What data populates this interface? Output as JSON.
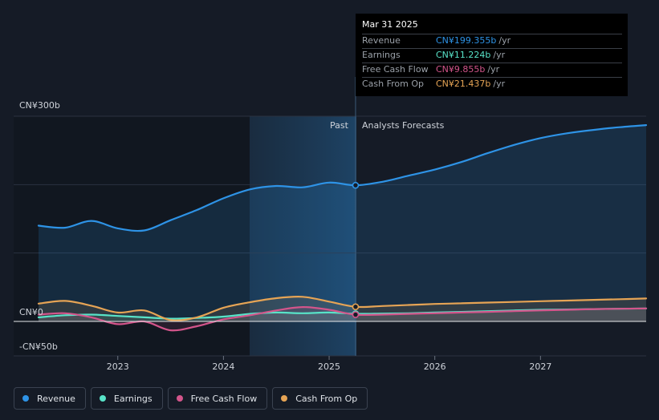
{
  "chart_data": {
    "type": "line",
    "y_axis_labels": [
      "CN¥300b",
      "CN¥0",
      "-CN¥50b"
    ],
    "ylim": [
      -50,
      300
    ],
    "xlim": [
      2022.25,
      2028.0
    ],
    "x_ticks": [
      {
        "label": "2023",
        "value": 2023.0
      },
      {
        "label": "2024",
        "value": 2024.0
      },
      {
        "label": "2025",
        "value": 2025.0
      },
      {
        "label": "2026",
        "value": 2026.0
      },
      {
        "label": "2027",
        "value": 2027.0
      }
    ],
    "divider_x": 2025.25,
    "shade_start_x": 2024.25,
    "past_label": "Past",
    "forecast_label": "Analysts Forecasts",
    "series": [
      {
        "name": "Revenue",
        "color": "#2e93e6",
        "x": [
          2022.25,
          2022.5,
          2022.75,
          2023.0,
          2023.25,
          2023.5,
          2023.75,
          2024.0,
          2024.25,
          2024.5,
          2024.75,
          2025.0,
          2025.25,
          2025.5,
          2025.75,
          2026.0,
          2026.25,
          2026.5,
          2026.75,
          2027.0,
          2027.25,
          2027.5,
          2027.75,
          2028.0
        ],
        "values": [
          140,
          137,
          147,
          136,
          133,
          148,
          163,
          180,
          193,
          198,
          196,
          203,
          199,
          204,
          213,
          222,
          233,
          246,
          258,
          268,
          275,
          280,
          284,
          287
        ]
      },
      {
        "name": "Earnings",
        "color": "#58e3c8",
        "x": [
          2022.25,
          2022.5,
          2022.75,
          2023.0,
          2023.25,
          2023.5,
          2023.75,
          2024.0,
          2024.25,
          2024.5,
          2024.75,
          2025.0,
          2025.25,
          2025.5,
          2025.75,
          2026.0,
          2026.25,
          2026.5,
          2026.75,
          2027.0,
          2027.25,
          2027.5,
          2027.75,
          2028.0
        ],
        "values": [
          6,
          9,
          10,
          8,
          6,
          4,
          5,
          7,
          11,
          13,
          12,
          13,
          11.2,
          11.5,
          12,
          13,
          14,
          15,
          16,
          17,
          17.5,
          18,
          18.5,
          19
        ]
      },
      {
        "name": "Free Cash Flow",
        "color": "#d3558b",
        "x": [
          2022.25,
          2022.5,
          2022.75,
          2023.0,
          2023.25,
          2023.5,
          2023.75,
          2024.0,
          2024.25,
          2024.5,
          2024.75,
          2025.0,
          2025.25,
          2025.5,
          2025.75,
          2026.0,
          2026.25,
          2026.5,
          2026.75,
          2027.0,
          2027.25,
          2027.5,
          2027.75,
          2028.0
        ],
        "values": [
          10,
          12,
          6,
          -4,
          0,
          -13,
          -7,
          3,
          9,
          16,
          21,
          17,
          9.9,
          10,
          11,
          12,
          13,
          14,
          15,
          16,
          17,
          18,
          18.5,
          19
        ]
      },
      {
        "name": "Cash From Op",
        "color": "#e6a455",
        "x": [
          2022.25,
          2022.5,
          2022.75,
          2023.0,
          2023.25,
          2023.5,
          2023.75,
          2024.0,
          2024.25,
          2024.5,
          2024.75,
          2025.0,
          2025.25,
          2025.5,
          2025.75,
          2026.0,
          2026.25,
          2026.5,
          2026.75,
          2027.0,
          2027.25,
          2027.5,
          2027.75,
          2028.0
        ],
        "values": [
          26,
          30,
          23,
          13,
          16,
          2,
          6,
          20,
          28,
          34,
          36,
          29,
          21.4,
          22.5,
          24,
          25.5,
          26.5,
          27.5,
          28.5,
          29.5,
          30.5,
          31.5,
          32.5,
          33.5
        ]
      }
    ],
    "highlight": {
      "x": 2025.25
    }
  },
  "tooltip": {
    "title": "Mar 31 2025",
    "rows": [
      {
        "label": "Revenue",
        "value": "CN¥199.355b",
        "unit": "/yr",
        "color": "#2e93e6"
      },
      {
        "label": "Earnings",
        "value": "CN¥11.224b",
        "unit": "/yr",
        "color": "#58e3c8"
      },
      {
        "label": "Free Cash Flow",
        "value": "CN¥9.855b",
        "unit": "/yr",
        "color": "#d3558b"
      },
      {
        "label": "Cash From Op",
        "value": "CN¥21.437b",
        "unit": "/yr",
        "color": "#e6a455"
      }
    ]
  },
  "legend": [
    {
      "label": "Revenue",
      "color": "#2e93e6"
    },
    {
      "label": "Earnings",
      "color": "#58e3c8"
    },
    {
      "label": "Free Cash Flow",
      "color": "#d3558b"
    },
    {
      "label": "Cash From Op",
      "color": "#e6a455"
    }
  ]
}
